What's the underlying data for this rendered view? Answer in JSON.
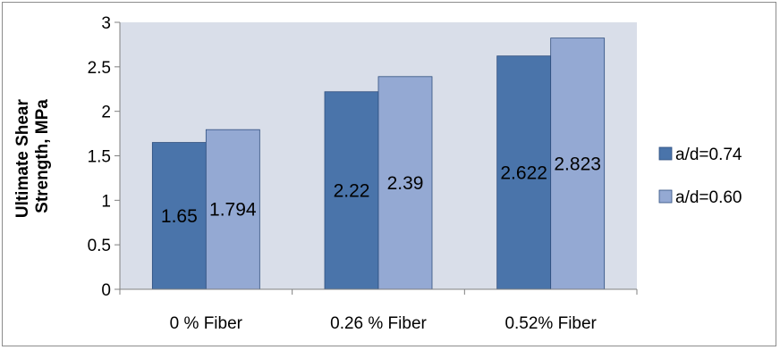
{
  "chart_data": {
    "type": "bar",
    "title": "",
    "xlabel": "",
    "ylabel_lines": [
      "Ultimate Shear",
      "Strength, MPa"
    ],
    "categories": [
      "0 % Fiber",
      "0.26 % Fiber",
      "0.52% Fiber"
    ],
    "series": [
      {
        "name": "a/d=0.74",
        "values": [
          1.65,
          2.22,
          2.622
        ],
        "labels": [
          "1.65",
          "2.22",
          "2.622"
        ],
        "color": "#4a74aa"
      },
      {
        "name": "a/d=0.60",
        "values": [
          1.794,
          2.39,
          2.823
        ],
        "labels": [
          "1.794",
          "2.39",
          "2.823"
        ],
        "color": "#94a9d3"
      }
    ],
    "ylim": [
      0,
      3
    ],
    "yticks": [
      0,
      0.5,
      1,
      1.5,
      2,
      2.5,
      3
    ],
    "ytick_labels": [
      "0",
      "0.5",
      "1",
      "1.5",
      "2",
      "2.5",
      "3"
    ],
    "plot_background": "#d9dee9",
    "grid": false,
    "legend_position": "right"
  }
}
